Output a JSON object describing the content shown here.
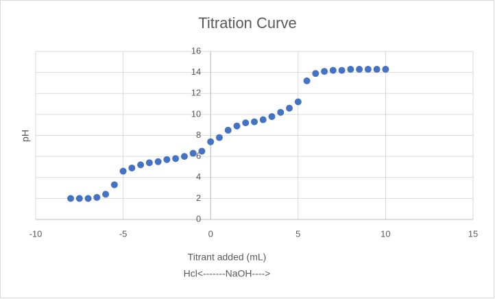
{
  "chart_data": {
    "type": "scatter",
    "title": "Titration Curve",
    "x_label": "Titrant added (mL)",
    "x_sublabel": "Hcl<-------NaOH---->",
    "y_label": "pH",
    "x": [
      -8,
      -7.5,
      -7,
      -6.5,
      -6,
      -5.5,
      -5,
      -4.5,
      -4,
      -3.5,
      -3,
      -2.5,
      -2,
      -1.5,
      -1,
      -0.5,
      0,
      0.5,
      1,
      1.5,
      2,
      2.5,
      3,
      3.5,
      4,
      4.5,
      5,
      5.5,
      6,
      6.5,
      7,
      7.5,
      8,
      8.5,
      9,
      9.5,
      10
    ],
    "values": [
      2.0,
      2.0,
      2.0,
      2.1,
      2.4,
      3.3,
      4.6,
      4.9,
      5.2,
      5.4,
      5.5,
      5.7,
      5.8,
      6.0,
      6.3,
      6.5,
      7.4,
      7.8,
      8.5,
      8.9,
      9.2,
      9.3,
      9.5,
      9.8,
      10.2,
      10.6,
      11.2,
      13.2,
      13.9,
      14.1,
      14.2,
      14.2,
      14.3,
      14.3,
      14.3,
      14.3,
      14.3
    ],
    "color": "#4472c4",
    "xlim": [
      -10,
      15
    ],
    "xticks": [
      -10,
      -5,
      0,
      5,
      10,
      15
    ],
    "ylim": [
      0,
      16
    ],
    "yticks": [
      0,
      2,
      4,
      6,
      8,
      10,
      12,
      14,
      16
    ],
    "grid": true
  }
}
